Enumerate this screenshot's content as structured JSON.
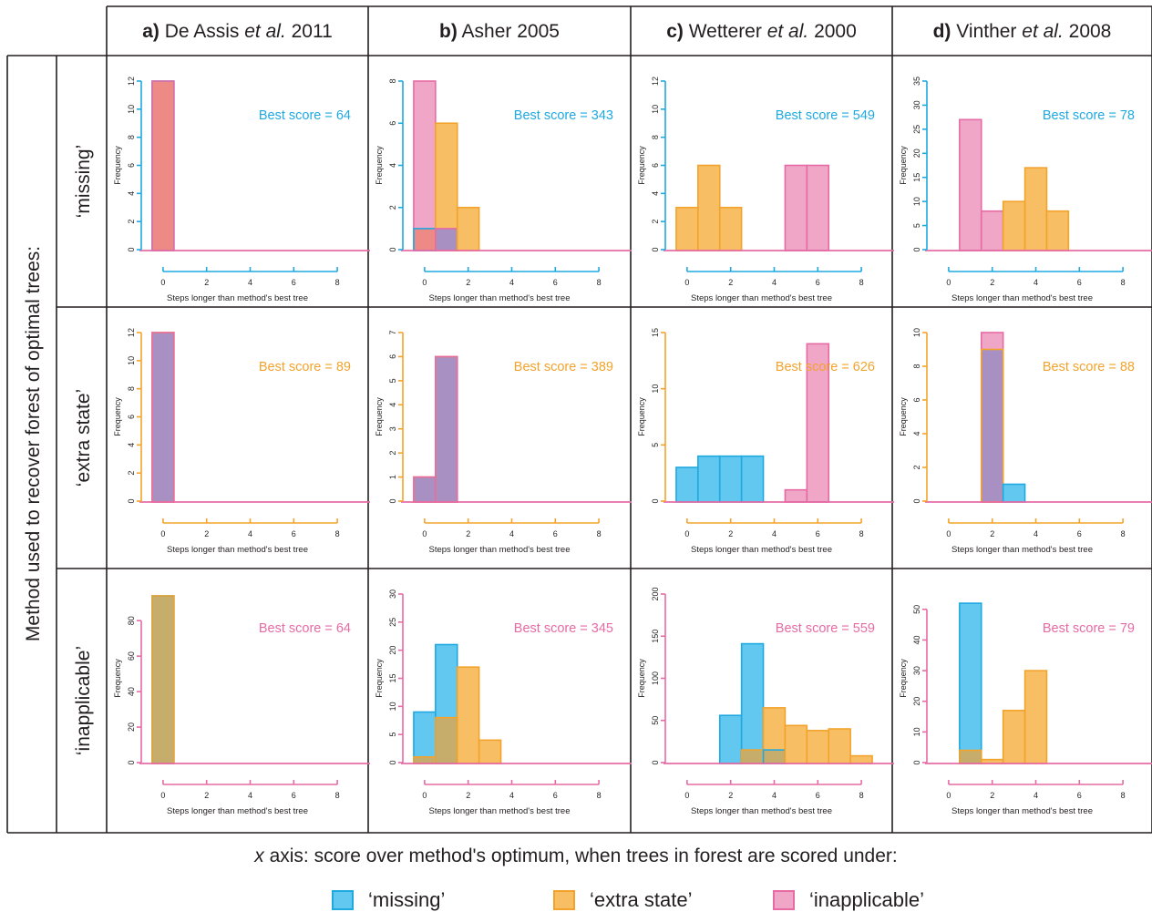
{
  "colors": {
    "missing": "#62c8f0",
    "missing_edge": "#1fa9e1",
    "extra": "#f8be64",
    "extra_edge": "#f3a32c",
    "inapplicable": "#efa6c7",
    "inapplicable_edge": "#e66ba4",
    "overlap_missing_inapplicable": "#ee8a86",
    "overlap_extra_inapplicable": "#a990c3",
    "overlap_missing_extra": "#c7ad6b",
    "border": "#231f20"
  },
  "row_axis_title": "Method used to recover forest of optimal trees:",
  "row_labels": [
    "‘missing’",
    "‘extra state’",
    "‘inapplicable’"
  ],
  "columns": [
    {
      "letter": "a)",
      "author": "De Assis",
      "etal": "et al.",
      "year": "2011"
    },
    {
      "letter": "b)",
      "author": "Asher 2005",
      "etal": "",
      "year": ""
    },
    {
      "letter": "c)",
      "author": "Wetterer",
      "etal": "et al.",
      "year": "2000"
    },
    {
      "letter": "d)",
      "author": "Vinther",
      "etal": "et al.",
      "year": "2008"
    }
  ],
  "xlabel": "Steps longer than method's best tree",
  "ylabel": "Frequency",
  "best_score_prefix": "Best score = ",
  "footer": {
    "x_word": "x",
    "text": " axis: score over method's optimum, when trees in forest are scored under:"
  },
  "legend": [
    {
      "key": "missing",
      "label": "‘missing’"
    },
    {
      "key": "extra",
      "label": "‘extra state’"
    },
    {
      "key": "inapplicable",
      "label": "‘inapplicable’"
    }
  ],
  "chart_data": [
    {
      "type": "bar",
      "row": 0,
      "col": 0,
      "method": "missing",
      "best_score": 64,
      "xlim": [
        -1,
        9
      ],
      "xticks": [
        0,
        2,
        4,
        6,
        8
      ],
      "ylim": [
        0,
        12
      ],
      "yticks": [
        0,
        2,
        4,
        6,
        8,
        10,
        12
      ],
      "bin_width": 1,
      "series": [
        {
          "name": "‘missing’",
          "key": "missing",
          "x": [
            0
          ],
          "values": [
            12
          ]
        },
        {
          "name": "‘inapplicable’",
          "key": "inapplicable",
          "x": [
            0
          ],
          "values": [
            12
          ]
        }
      ]
    },
    {
      "type": "bar",
      "row": 0,
      "col": 1,
      "method": "missing",
      "best_score": 343,
      "xlim": [
        -1,
        9
      ],
      "xticks": [
        0,
        2,
        4,
        6,
        8
      ],
      "ylim": [
        0,
        8
      ],
      "yticks": [
        0,
        2,
        4,
        6,
        8
      ],
      "bin_width": 1,
      "series": [
        {
          "name": "‘extra state’",
          "key": "extra",
          "x": [
            1,
            2
          ],
          "values": [
            6,
            2
          ]
        },
        {
          "name": "‘inapplicable’",
          "key": "inapplicable",
          "x": [
            0,
            1
          ],
          "values": [
            8,
            1
          ]
        },
        {
          "name": "‘missing’",
          "key": "missing",
          "x": [
            0
          ],
          "values": [
            1
          ]
        }
      ]
    },
    {
      "type": "bar",
      "row": 0,
      "col": 2,
      "method": "missing",
      "best_score": 549,
      "xlim": [
        -1,
        9
      ],
      "xticks": [
        0,
        2,
        4,
        6,
        8
      ],
      "ylim": [
        0,
        12
      ],
      "yticks": [
        0,
        2,
        4,
        6,
        8,
        10,
        12
      ],
      "bin_width": 1,
      "series": [
        {
          "name": "‘extra state’",
          "key": "extra",
          "x": [
            0,
            1,
            2
          ],
          "values": [
            3,
            6,
            3
          ]
        },
        {
          "name": "‘inapplicable’",
          "key": "inapplicable",
          "x": [
            5,
            6
          ],
          "values": [
            6,
            6
          ]
        }
      ]
    },
    {
      "type": "bar",
      "row": 0,
      "col": 3,
      "method": "missing",
      "best_score": 78,
      "xlim": [
        -1,
        9
      ],
      "xticks": [
        0,
        2,
        4,
        6,
        8
      ],
      "ylim": [
        0,
        35
      ],
      "yticks": [
        0,
        5,
        10,
        15,
        20,
        25,
        30,
        35
      ],
      "bin_width": 1,
      "series": [
        {
          "name": "‘inapplicable’",
          "key": "inapplicable",
          "x": [
            1,
            2
          ],
          "values": [
            27,
            8
          ]
        },
        {
          "name": "‘extra state’",
          "key": "extra",
          "x": [
            3,
            4,
            5
          ],
          "values": [
            10,
            17,
            8
          ]
        }
      ]
    },
    {
      "type": "bar",
      "row": 1,
      "col": 0,
      "method": "extra",
      "best_score": 89,
      "xlim": [
        -1,
        9
      ],
      "xticks": [
        0,
        2,
        4,
        6,
        8
      ],
      "ylim": [
        0,
        12
      ],
      "yticks": [
        0,
        2,
        4,
        6,
        8,
        10,
        12
      ],
      "bin_width": 1,
      "series": [
        {
          "name": "‘extra state’",
          "key": "extra",
          "x": [
            0
          ],
          "values": [
            12
          ]
        },
        {
          "name": "‘inapplicable’",
          "key": "inapplicable",
          "x": [
            0
          ],
          "values": [
            12
          ]
        }
      ]
    },
    {
      "type": "bar",
      "row": 1,
      "col": 1,
      "method": "extra",
      "best_score": 389,
      "xlim": [
        -1,
        9
      ],
      "xticks": [
        0,
        2,
        4,
        6,
        8
      ],
      "ylim": [
        0,
        7
      ],
      "yticks": [
        0,
        1,
        2,
        3,
        4,
        5,
        6,
        7
      ],
      "bin_width": 1,
      "series": [
        {
          "name": "‘extra state’",
          "key": "extra",
          "x": [
            0,
            1
          ],
          "values": [
            1,
            6
          ]
        },
        {
          "name": "‘inapplicable’",
          "key": "inapplicable",
          "x": [
            0,
            1
          ],
          "values": [
            1,
            6
          ]
        }
      ]
    },
    {
      "type": "bar",
      "row": 1,
      "col": 2,
      "method": "extra",
      "best_score": 626,
      "xlim": [
        -1,
        9
      ],
      "xticks": [
        0,
        2,
        4,
        6,
        8
      ],
      "ylim": [
        0,
        15
      ],
      "yticks": [
        0,
        5,
        10,
        15
      ],
      "bin_width": 1,
      "series": [
        {
          "name": "‘missing’",
          "key": "missing",
          "x": [
            0,
            1,
            2,
            3
          ],
          "values": [
            3,
            4,
            4,
            4
          ]
        },
        {
          "name": "‘inapplicable’",
          "key": "inapplicable",
          "x": [
            5,
            6
          ],
          "values": [
            1,
            14
          ]
        }
      ]
    },
    {
      "type": "bar",
      "row": 1,
      "col": 3,
      "method": "extra",
      "best_score": 88,
      "xlim": [
        -1,
        9
      ],
      "xticks": [
        0,
        2,
        4,
        6,
        8
      ],
      "ylim": [
        0,
        10
      ],
      "yticks": [
        0,
        2,
        4,
        6,
        8,
        10
      ],
      "bin_width": 1,
      "series": [
        {
          "name": "‘inapplicable’",
          "key": "inapplicable",
          "x": [
            2
          ],
          "values": [
            10
          ]
        },
        {
          "name": "‘extra state’",
          "key": "extra",
          "x": [
            2
          ],
          "values": [
            9
          ]
        },
        {
          "name": "‘missing’",
          "key": "missing",
          "x": [
            3
          ],
          "values": [
            1
          ]
        }
      ]
    },
    {
      "type": "bar",
      "row": 2,
      "col": 0,
      "method": "inapplicable",
      "best_score": 64,
      "xlim": [
        -1,
        9
      ],
      "xticks": [
        0,
        2,
        4,
        6,
        8
      ],
      "ylim": [
        0,
        95
      ],
      "yticks": [
        0,
        20,
        40,
        60,
        80
      ],
      "bin_width": 1,
      "series": [
        {
          "name": "‘missing’",
          "key": "missing",
          "x": [
            0
          ],
          "values": [
            94
          ]
        },
        {
          "name": "‘extra state’",
          "key": "extra",
          "x": [
            0
          ],
          "values": [
            94
          ]
        }
      ]
    },
    {
      "type": "bar",
      "row": 2,
      "col": 1,
      "method": "inapplicable",
      "best_score": 345,
      "xlim": [
        -1,
        9
      ],
      "xticks": [
        0,
        2,
        4,
        6,
        8
      ],
      "ylim": [
        0,
        30
      ],
      "yticks": [
        0,
        5,
        10,
        15,
        20,
        25,
        30
      ],
      "bin_width": 1,
      "series": [
        {
          "name": "‘missing’",
          "key": "missing",
          "x": [
            0,
            1
          ],
          "values": [
            9,
            21
          ]
        },
        {
          "name": "‘extra state’",
          "key": "extra",
          "x": [
            0,
            1,
            2,
            3
          ],
          "values": [
            1,
            8,
            17,
            4
          ]
        }
      ]
    },
    {
      "type": "bar",
      "row": 2,
      "col": 2,
      "method": "inapplicable",
      "best_score": 559,
      "xlim": [
        -1,
        9
      ],
      "xticks": [
        0,
        2,
        4,
        6,
        8
      ],
      "ylim": [
        0,
        200
      ],
      "yticks": [
        0,
        50,
        100,
        150,
        200
      ],
      "bin_width": 1,
      "series": [
        {
          "name": "‘missing’",
          "key": "missing",
          "x": [
            2,
            3,
            4
          ],
          "values": [
            56,
            141,
            15
          ]
        },
        {
          "name": "‘extra state’",
          "key": "extra",
          "x": [
            3,
            4,
            5,
            6,
            7,
            8
          ],
          "values": [
            15,
            65,
            44,
            38,
            40,
            8
          ]
        }
      ]
    },
    {
      "type": "bar",
      "row": 2,
      "col": 3,
      "method": "inapplicable",
      "best_score": 79,
      "xlim": [
        -1,
        9
      ],
      "xticks": [
        0,
        2,
        4,
        6,
        8
      ],
      "ylim": [
        0,
        55
      ],
      "yticks": [
        0,
        10,
        20,
        30,
        40,
        50
      ],
      "bin_width": 1,
      "series": [
        {
          "name": "‘missing’",
          "key": "missing",
          "x": [
            1
          ],
          "values": [
            52
          ]
        },
        {
          "name": "‘extra state’",
          "key": "extra",
          "x": [
            1,
            2,
            3,
            4
          ],
          "values": [
            4,
            1,
            17,
            30
          ]
        }
      ]
    }
  ]
}
